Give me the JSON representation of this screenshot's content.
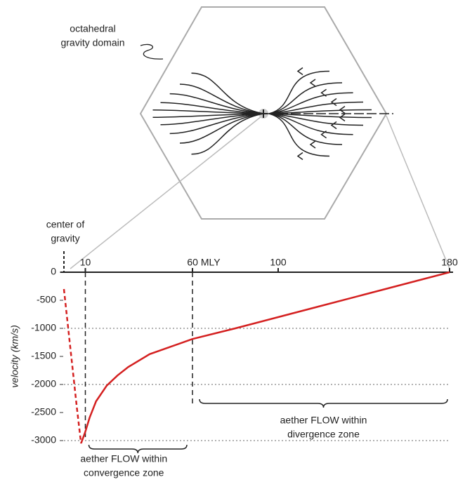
{
  "chart_data": {
    "type": "line",
    "diagram_label": [
      "octahedral",
      "gravity domain"
    ],
    "ylabel": "velocity (km/s)",
    "x": [
      0,
      2,
      4,
      6,
      8,
      10,
      12,
      15,
      20,
      25,
      30,
      40,
      60,
      80,
      100,
      120,
      140,
      160,
      180
    ],
    "series": [
      {
        "color": "#d42020",
        "style": "dashed",
        "values": [
          -300,
          -1000,
          -1700,
          -2400,
          -3050,
          null,
          null,
          null,
          null,
          null,
          null,
          null,
          null,
          null,
          null,
          null,
          null,
          null,
          null
        ]
      },
      {
        "color": "#d42020",
        "style": "solid",
        "values": [
          null,
          null,
          null,
          null,
          -3050,
          -2840,
          -2590,
          -2300,
          -2020,
          -1840,
          -1690,
          -1460,
          -1190,
          -1000,
          -800,
          -600,
          -400,
          -200,
          0
        ]
      }
    ],
    "xlim": [
      0,
      180
    ],
    "xticks": [
      10,
      {
        "value": 60,
        "label": "60 MLY"
      },
      100,
      180
    ],
    "ylim": [
      -3200,
      0
    ],
    "yticks": [
      0,
      -500,
      -1000,
      -1500,
      -2000,
      -2500,
      -3000
    ],
    "ygrid": [
      -1000,
      -2000,
      -3000
    ],
    "vlines": [
      10,
      60
    ],
    "annotations": [
      {
        "x": 0,
        "lines": [
          "center of",
          "gravity"
        ]
      },
      {
        "x": 10,
        "x2": 60,
        "lines": [
          "aether FLOW within",
          "convergence zone"
        ]
      },
      {
        "x": 60,
        "x2": 180,
        "lines": [
          "aether FLOW within",
          "divergence zone"
        ]
      }
    ]
  }
}
